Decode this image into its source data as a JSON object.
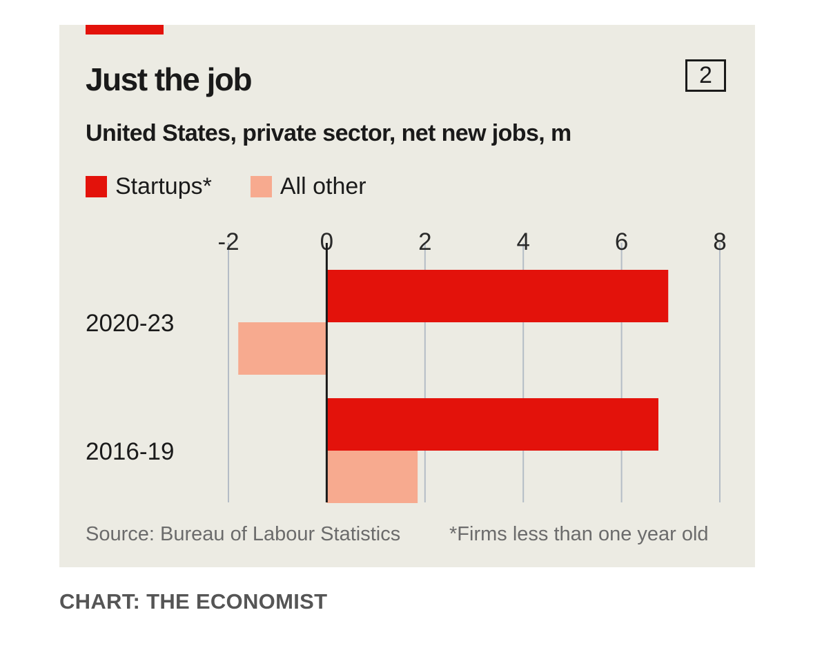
{
  "chart_data": {
    "type": "bar",
    "orientation": "horizontal",
    "title": "Just the job",
    "subtitle": "United States, private sector, net new jobs, m",
    "chart_number": "2",
    "categories": [
      "2020-23",
      "2016-19"
    ],
    "series": [
      {
        "name": "Startups*",
        "color": "#e3120b",
        "values": [
          6.95,
          6.75
        ]
      },
      {
        "name": "All other",
        "color": "#f7aa8f",
        "values": [
          -1.8,
          1.85
        ]
      }
    ],
    "x_ticks": [
      "-2",
      "0",
      "2",
      "4",
      "6",
      "8"
    ],
    "xlim": [
      -2,
      8
    ],
    "grid": true,
    "legend_position": "top-left",
    "source": "Source: Bureau of Labour Statistics",
    "footnote": "*Firms less than one year old"
  },
  "credit": "CHART: THE ECONOMIST"
}
